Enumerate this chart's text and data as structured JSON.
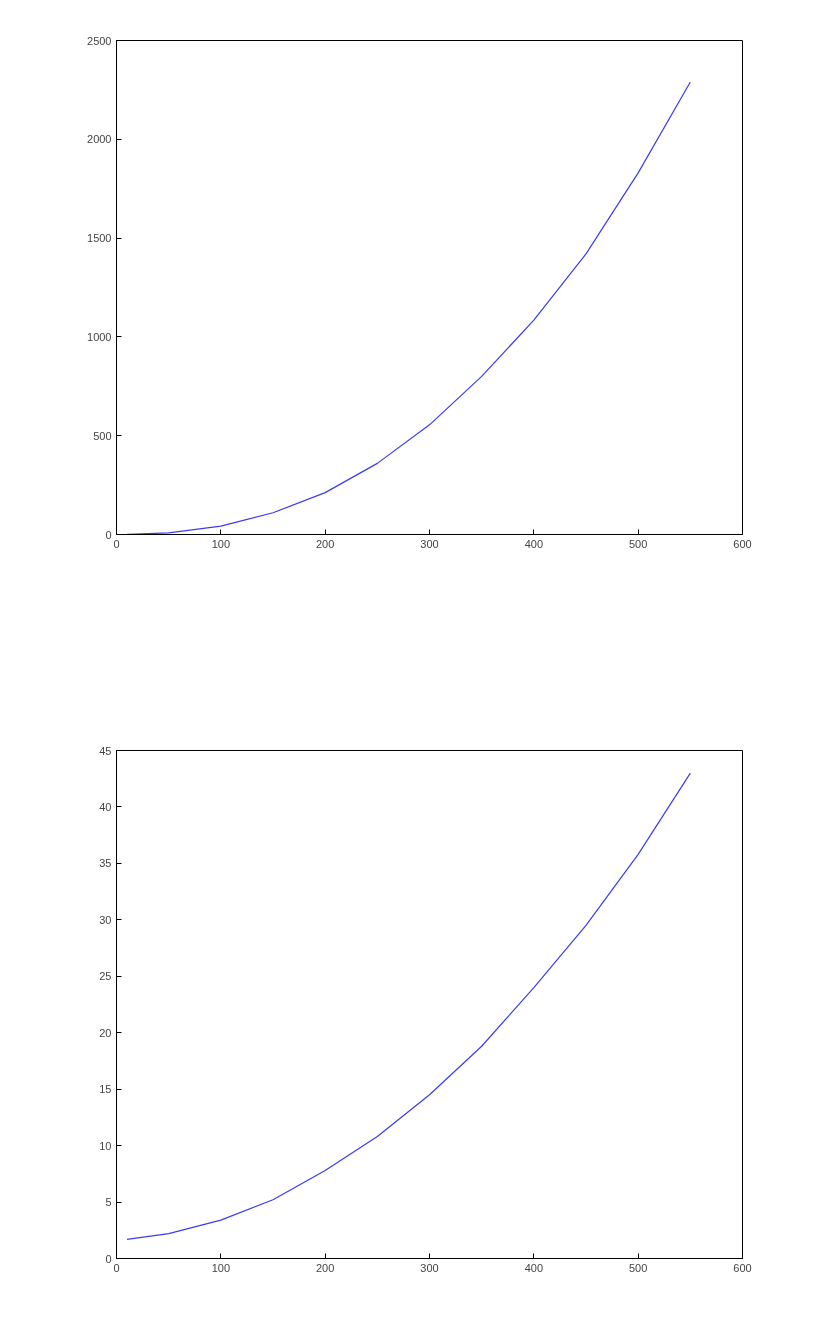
{
  "chart_data": [
    {
      "type": "line",
      "x": [
        10,
        50,
        100,
        150,
        200,
        250,
        300,
        350,
        400,
        450,
        500,
        550
      ],
      "series": [
        {
          "color": "#3b3bf5",
          "values": [
            0.2,
            8,
            42,
            110,
            212,
            360,
            555,
            800,
            1085,
            1420,
            1830,
            2290
          ]
        }
      ],
      "xlim": [
        0,
        600
      ],
      "xticks": [
        0,
        100,
        200,
        300,
        400,
        500,
        600
      ],
      "ylim": [
        0,
        2500
      ],
      "yticks": [
        0,
        500,
        1000,
        1500,
        2000,
        2500
      ],
      "grid": false
    },
    {
      "type": "line",
      "x": [
        10,
        50,
        100,
        150,
        200,
        250,
        300,
        350,
        400,
        450,
        500,
        550
      ],
      "series": [
        {
          "color": "#3b3bf5",
          "values": [
            1.7,
            2.2,
            3.4,
            5.2,
            7.8,
            10.8,
            14.5,
            18.8,
            24,
            29.5,
            35.8,
            43
          ]
        }
      ],
      "xlim": [
        0,
        600
      ],
      "xticks": [
        0,
        100,
        200,
        300,
        400,
        500,
        600
      ],
      "ylim": [
        0,
        45
      ],
      "yticks": [
        0,
        5,
        10,
        15,
        20,
        25,
        30,
        35,
        40,
        45
      ],
      "grid": false
    }
  ]
}
